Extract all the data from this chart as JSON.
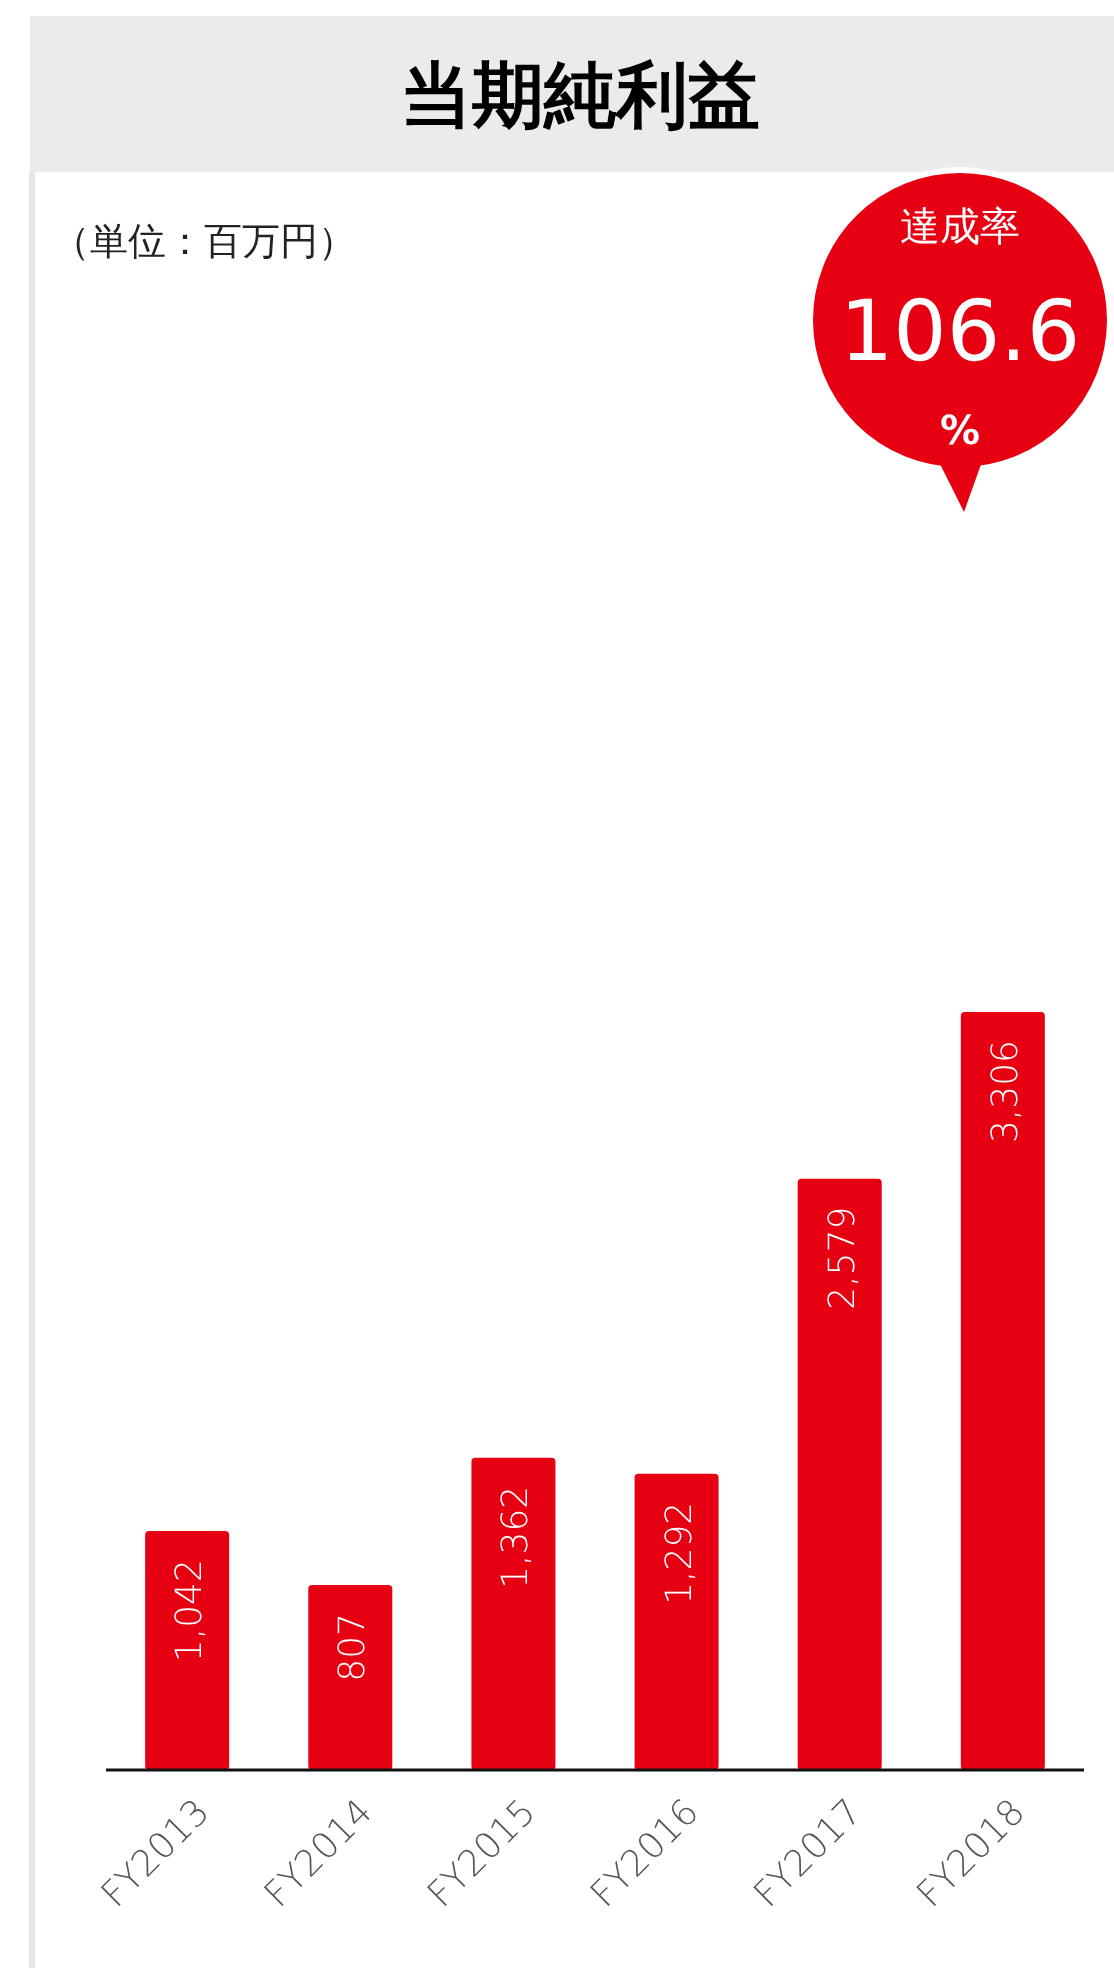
{
  "chart_data": {
    "type": "bar",
    "title": "当期純利益",
    "categories": [
      "FY2013",
      "FY2014",
      "FY2015",
      "FY2016",
      "FY2017",
      "FY2018"
    ],
    "values": [
      1042,
      807,
      1362,
      1292,
      2579,
      3306
    ],
    "value_labels": [
      "1,042",
      "807",
      "1,362",
      "1,292",
      "2,579",
      "3,306"
    ],
    "color": "#e60012",
    "annotations": [
      "（単位：百万円）",
      "達成率",
      "106.6",
      "%"
    ]
  }
}
